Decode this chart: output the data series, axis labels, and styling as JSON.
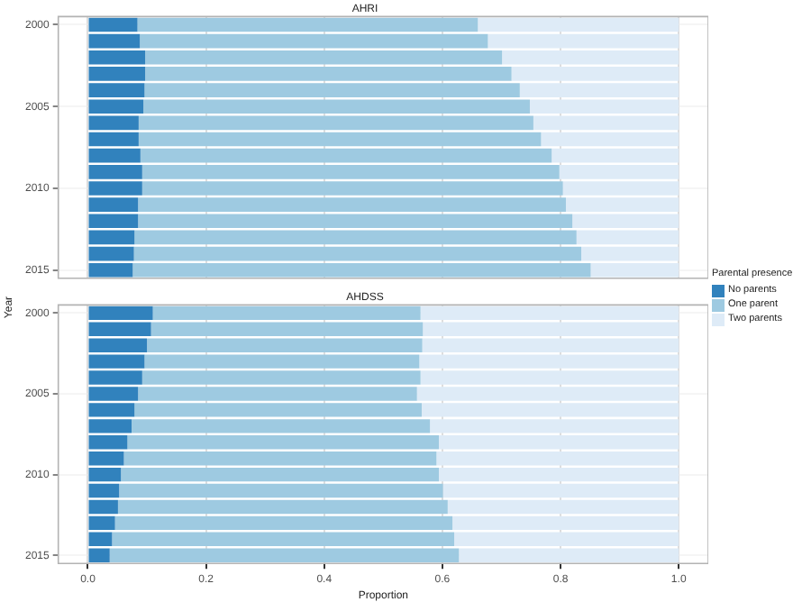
{
  "chart_data": [
    {
      "type": "bar",
      "title": "AHRI",
      "ylabel": "Year",
      "orientation": "horizontal",
      "stacked": true,
      "grid": true,
      "tick_labels": "y",
      "legend": "right",
      "legend_title": "Parental presence",
      "categories": [
        "2000",
        null,
        null,
        null,
        null,
        "2005",
        null,
        null,
        null,
        null,
        "2010",
        null,
        null,
        null,
        null,
        "2015"
      ],
      "xlim": [
        -0.05,
        1.05
      ],
      "xticks": [
        0,
        0.2,
        0.4,
        0.6,
        0.8,
        1
      ],
      "series": [
        {
          "name": "No parents",
          "color": "#3182bd",
          "values": [
            0.084,
            0.088,
            0.097,
            0.097,
            0.096,
            0.094,
            0.086,
            0.086,
            0.089,
            0.092,
            0.092,
            0.085,
            0.085,
            0.079,
            0.078,
            0.076
          ]
        },
        {
          "name": "One parent",
          "color": "#9ecae1",
          "values": [
            0.576,
            0.589,
            0.604,
            0.62,
            0.635,
            0.654,
            0.668,
            0.681,
            0.696,
            0.706,
            0.712,
            0.724,
            0.735,
            0.748,
            0.757,
            0.775
          ]
        },
        {
          "name": "Two parents",
          "color": "#deebf7",
          "values": [
            0.34,
            0.323,
            0.299,
            0.283,
            0.269,
            0.252,
            0.246,
            0.233,
            0.215,
            0.202,
            0.196,
            0.191,
            0.18,
            0.173,
            0.165,
            0.149
          ]
        }
      ]
    },
    {
      "type": "bar",
      "title": "AHDSS",
      "xlabel": "Proportion",
      "orientation": "horizontal",
      "stacked": true,
      "grid": true,
      "categories": [
        "2000",
        null,
        null,
        null,
        null,
        "2005",
        null,
        null,
        null,
        null,
        "2010",
        null,
        null,
        null,
        null,
        "2015"
      ],
      "xlim": [
        -0.05,
        1.05
      ],
      "xticks": [
        {
          "value": 0,
          "label": "0.0"
        },
        0.2,
        0.4,
        0.6,
        0.8,
        {
          "value": 1,
          "label": "1.0"
        }
      ],
      "series": [
        {
          "color": "#3182bd",
          "values": [
            0.11,
            0.107,
            0.1,
            0.096,
            0.092,
            0.085,
            0.079,
            0.074,
            0.067,
            0.061,
            0.056,
            0.053,
            0.051,
            0.046,
            0.041,
            0.037
          ]
        },
        {
          "color": "#9ecae1",
          "values": [
            0.453,
            0.46,
            0.466,
            0.465,
            0.471,
            0.472,
            0.486,
            0.505,
            0.527,
            0.529,
            0.538,
            0.548,
            0.558,
            0.571,
            0.579,
            0.591
          ]
        },
        {
          "color": "#deebf7",
          "values": [
            0.437,
            0.433,
            0.434,
            0.439,
            0.437,
            0.443,
            0.435,
            0.421,
            0.406,
            0.41,
            0.406,
            0.399,
            0.391,
            0.383,
            0.38,
            0.372
          ]
        }
      ]
    }
  ]
}
